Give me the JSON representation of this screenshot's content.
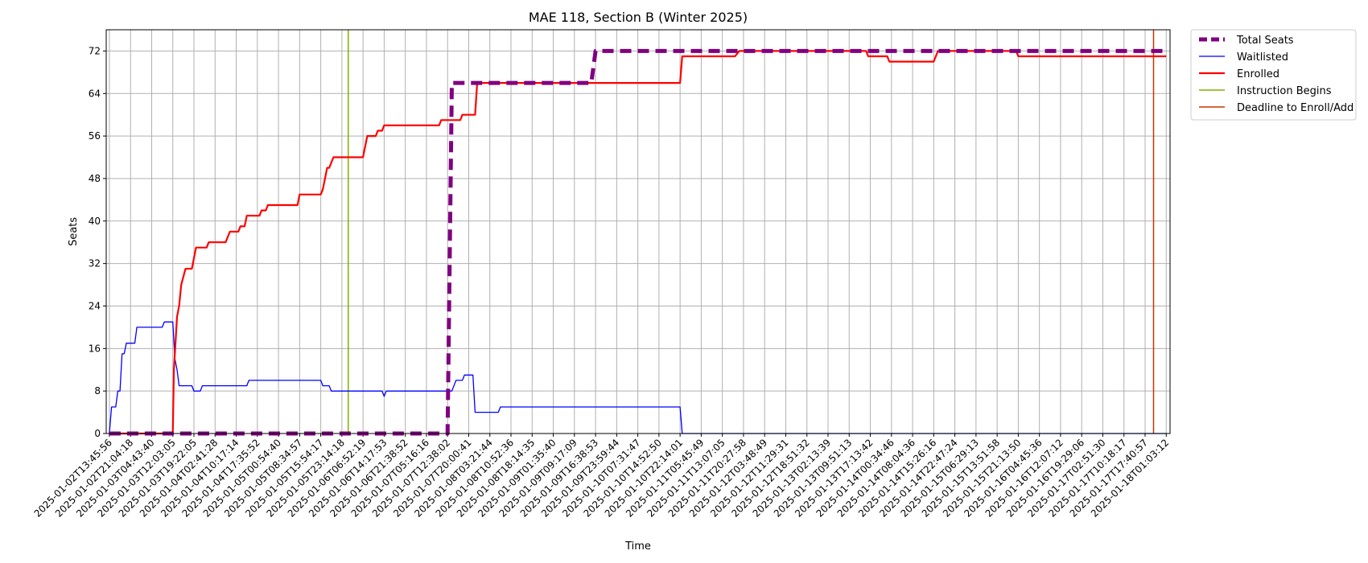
{
  "chart_data": {
    "type": "line",
    "title": "MAE 118, Section B (Winter 2025)",
    "xlabel": "Time",
    "ylabel": "Seats",
    "ylim": [
      0,
      76
    ],
    "yticks": [
      0,
      8,
      16,
      24,
      32,
      40,
      48,
      56,
      64,
      72
    ],
    "grid": true,
    "legend_position": "outside-top-right",
    "x_tick_labels": [
      "2025-01-02T13:45:56",
      "2025-01-02T21:04:18",
      "2025-01-03T04:43:40",
      "2025-01-03T12:03:05",
      "2025-01-03T19:22:05",
      "2025-01-04T02:41:28",
      "2025-01-04T10:17:14",
      "2025-01-04T17:35:52",
      "2025-01-05T00:54:40",
      "2025-01-05T08:34:57",
      "2025-01-05T15:54:17",
      "2025-01-05T23:14:18",
      "2025-01-06T06:52:19",
      "2025-01-06T14:17:53",
      "2025-01-06T21:38:52",
      "2025-01-07T05:16:16",
      "2025-01-07T12:38:02",
      "2025-01-07T20:00:41",
      "2025-01-08T03:21:44",
      "2025-01-08T10:52:36",
      "2025-01-08T18:14:35",
      "2025-01-09T01:35:40",
      "2025-01-09T09:17:09",
      "2025-01-09T16:38:53",
      "2025-01-09T23:59:44",
      "2025-01-10T07:31:47",
      "2025-01-10T14:52:50",
      "2025-01-10T22:14:01",
      "2025-01-11T05:45:49",
      "2025-01-11T13:07:05",
      "2025-01-11T20:27:58",
      "2025-01-12T03:48:49",
      "2025-01-12T11:29:31",
      "2025-01-12T18:51:32",
      "2025-01-13T02:13:39",
      "2025-01-13T09:51:13",
      "2025-01-13T17:13:42",
      "2025-01-14T00:34:46",
      "2025-01-14T08:04:36",
      "2025-01-14T15:26:16",
      "2025-01-14T22:47:24",
      "2025-01-15T06:29:13",
      "2025-01-15T13:51:58",
      "2025-01-15T21:13:50",
      "2025-01-16T04:45:36",
      "2025-01-16T12:07:12",
      "2025-01-16T19:29:06",
      "2025-01-17T02:51:30",
      "2025-01-17T10:18:17",
      "2025-01-17T17:40:57",
      "2025-01-18T01:03:12"
    ],
    "series": [
      {
        "name": "Total Seats",
        "color": "#800080",
        "style": "dashed",
        "points": [
          [
            0,
            0
          ],
          [
            16.0,
            0
          ],
          [
            16.2,
            66
          ],
          [
            22.8,
            66
          ],
          [
            23.0,
            72
          ],
          [
            50.0,
            72
          ]
        ]
      },
      {
        "name": "Waitlisted",
        "color": "#0000ff",
        "style": "solid",
        "points": [
          [
            0,
            0
          ],
          [
            0.1,
            5
          ],
          [
            0.3,
            5
          ],
          [
            0.4,
            8
          ],
          [
            0.5,
            8
          ],
          [
            0.6,
            15
          ],
          [
            0.7,
            15
          ],
          [
            0.8,
            17
          ],
          [
            1.2,
            17
          ],
          [
            1.3,
            20
          ],
          [
            2.5,
            20
          ],
          [
            2.6,
            21
          ],
          [
            3.0,
            21
          ],
          [
            3.1,
            14
          ],
          [
            3.2,
            12
          ],
          [
            3.3,
            9
          ],
          [
            3.9,
            9
          ],
          [
            4.0,
            8
          ],
          [
            4.3,
            8
          ],
          [
            4.4,
            9
          ],
          [
            6.5,
            9
          ],
          [
            6.6,
            10
          ],
          [
            10.0,
            10
          ],
          [
            10.1,
            9
          ],
          [
            10.4,
            9
          ],
          [
            10.5,
            8
          ],
          [
            12.9,
            8
          ],
          [
            13.0,
            7
          ],
          [
            13.1,
            8
          ],
          [
            16.2,
            8
          ],
          [
            16.4,
            10
          ],
          [
            16.7,
            10
          ],
          [
            16.8,
            11
          ],
          [
            17.2,
            11
          ],
          [
            17.3,
            4
          ],
          [
            18.4,
            4
          ],
          [
            18.5,
            5
          ],
          [
            27.0,
            5
          ],
          [
            27.1,
            0
          ],
          [
            50.0,
            0
          ]
        ]
      },
      {
        "name": "Enrolled",
        "color": "#ff0000",
        "style": "solid",
        "points": [
          [
            0,
            0
          ],
          [
            3.0,
            0
          ],
          [
            3.05,
            12
          ],
          [
            3.2,
            22
          ],
          [
            3.3,
            24
          ],
          [
            3.4,
            28
          ],
          [
            3.6,
            31
          ],
          [
            3.9,
            31
          ],
          [
            4.0,
            33
          ],
          [
            4.1,
            35
          ],
          [
            4.6,
            35
          ],
          [
            4.7,
            36
          ],
          [
            5.5,
            36
          ],
          [
            5.6,
            37
          ],
          [
            5.7,
            38
          ],
          [
            6.1,
            38
          ],
          [
            6.2,
            39
          ],
          [
            6.4,
            39
          ],
          [
            6.5,
            41
          ],
          [
            7.1,
            41
          ],
          [
            7.2,
            42
          ],
          [
            7.4,
            42
          ],
          [
            7.5,
            43
          ],
          [
            8.9,
            43
          ],
          [
            9.0,
            45
          ],
          [
            10.0,
            45
          ],
          [
            10.1,
            46
          ],
          [
            10.2,
            48
          ],
          [
            10.3,
            50
          ],
          [
            10.4,
            50
          ],
          [
            10.5,
            51
          ],
          [
            10.6,
            52
          ],
          [
            12.0,
            52
          ],
          [
            12.2,
            56
          ],
          [
            12.6,
            56
          ],
          [
            12.7,
            57
          ],
          [
            12.9,
            57
          ],
          [
            13.0,
            58
          ],
          [
            15.6,
            58
          ],
          [
            15.7,
            59
          ],
          [
            16.6,
            59
          ],
          [
            16.7,
            60
          ],
          [
            17.3,
            60
          ],
          [
            17.4,
            66
          ],
          [
            27.0,
            66
          ],
          [
            27.1,
            71
          ],
          [
            29.6,
            71
          ],
          [
            29.8,
            72
          ],
          [
            35.8,
            72
          ],
          [
            35.9,
            71
          ],
          [
            36.8,
            71
          ],
          [
            36.9,
            70
          ],
          [
            39.0,
            70
          ],
          [
            39.2,
            72
          ],
          [
            42.9,
            72
          ],
          [
            43.0,
            71
          ],
          [
            50.0,
            71
          ]
        ]
      }
    ],
    "vertical_lines": [
      {
        "name": "Instruction Begins",
        "x": 11.3,
        "color": "#80b000"
      },
      {
        "name": "Deadline to Enroll/Add",
        "x": 49.4,
        "color": "#cc3300"
      }
    ],
    "legend": [
      "Total Seats",
      "Waitlisted",
      "Enrolled",
      "Instruction Begins",
      "Deadline to Enroll/Add"
    ]
  }
}
